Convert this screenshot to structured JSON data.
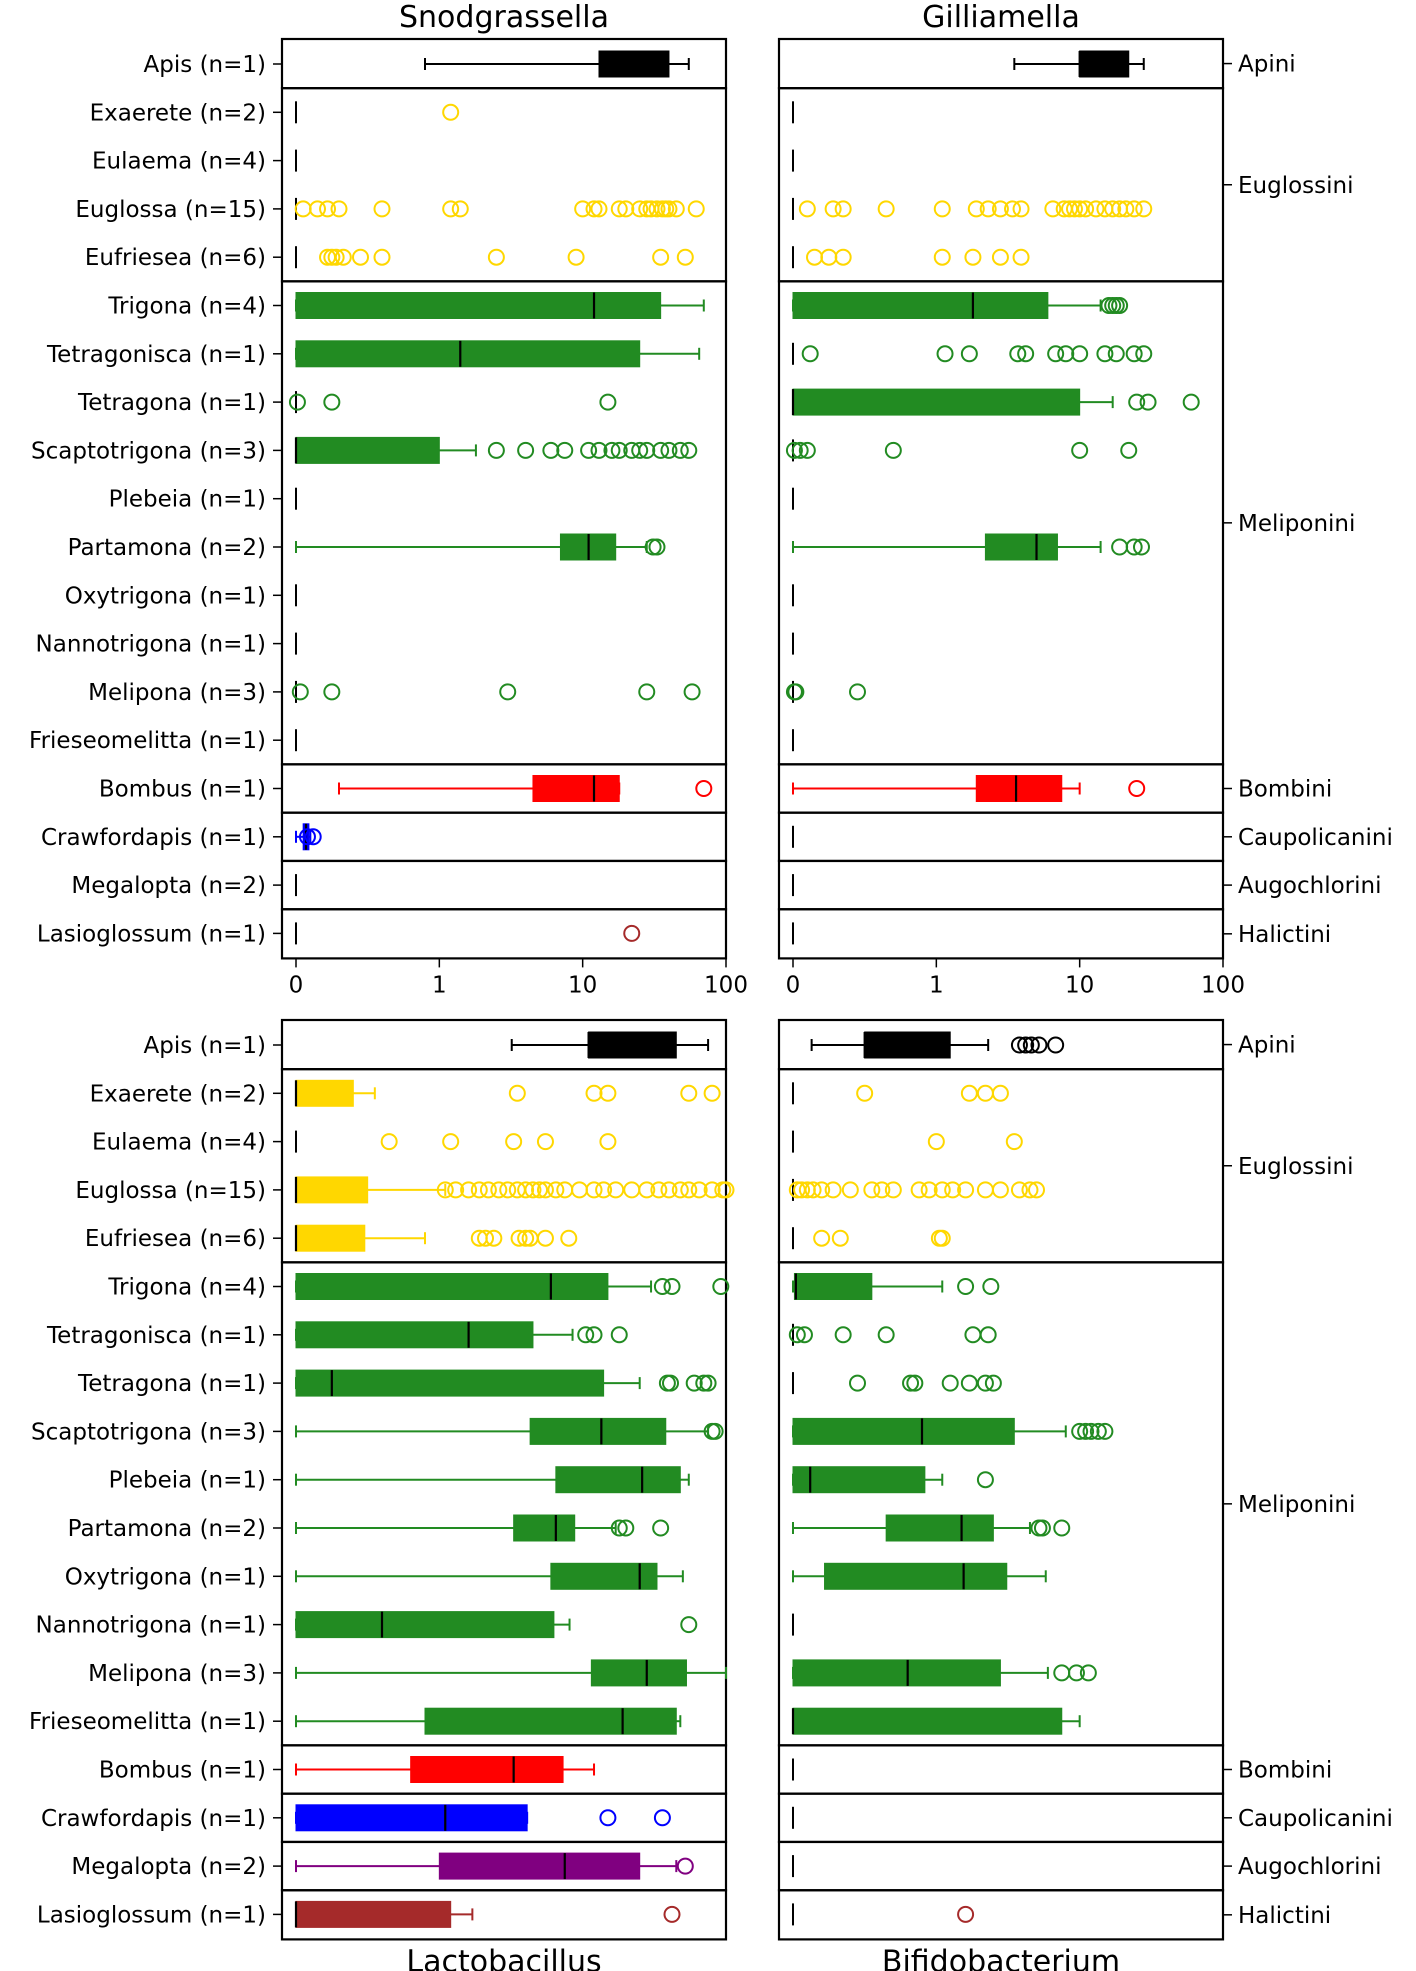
{
  "chart_data": {
    "type": "box",
    "xscale": "symlog",
    "xlim": [
      0,
      100
    ],
    "xticks": [
      "0",
      "1",
      "10",
      "100"
    ],
    "ylabels": [
      "Apis (n=1)",
      "Exaerete (n=2)",
      "Eulaema (n=4)",
      "Euglossa (n=15)",
      "Eufriesea (n=6)",
      "Trigona (n=4)",
      "Tetragonisca (n=1)",
      "Tetragona (n=1)",
      "Scaptotrigona (n=3)",
      "Plebeia (n=1)",
      "Partamona (n=2)",
      "Oxytrigona (n=1)",
      "Nannotrigona (n=1)",
      "Melipona (n=3)",
      "Frieseomelitta (n=1)",
      "Bombus (n=1)",
      "Crawfordapis (n=1)",
      "Megalopta (n=2)",
      "Lasioglossum (n=1)"
    ],
    "tribes": [
      {
        "name": "Apini",
        "rows": [
          0,
          0
        ]
      },
      {
        "name": "Euglossini",
        "rows": [
          1,
          4
        ]
      },
      {
        "name": "Meliponini",
        "rows": [
          5,
          14
        ]
      },
      {
        "name": "Bombini",
        "rows": [
          15,
          15
        ]
      },
      {
        "name": "Caupolicanini",
        "rows": [
          16,
          16
        ]
      },
      {
        "name": "Augochlorini",
        "rows": [
          17,
          17
        ]
      },
      {
        "name": "Halictini",
        "rows": [
          18,
          18
        ]
      }
    ],
    "colors": [
      "#000000",
      "#ffd700",
      "#ffd700",
      "#ffd700",
      "#ffd700",
      "#228b22",
      "#228b22",
      "#228b22",
      "#228b22",
      "#228b22",
      "#228b22",
      "#228b22",
      "#228b22",
      "#228b22",
      "#228b22",
      "#ff0000",
      "#0000ff",
      "#800080",
      "#a52a2a"
    ],
    "panels": [
      {
        "title": "Snodgrassella",
        "title_position": "top",
        "boxes": [
          {
            "wl": 0.9,
            "q1": 13,
            "med": 30,
            "q3": 40,
            "wh": 55,
            "fl": []
          },
          {
            "wl": 0,
            "q1": 0,
            "med": 0,
            "q3": 0,
            "wh": 0,
            "fl": [
              1.2
            ]
          },
          {
            "wl": 0,
            "q1": 0,
            "med": 0,
            "q3": 0,
            "wh": 0,
            "fl": []
          },
          {
            "wl": 0,
            "q1": 0,
            "med": 0,
            "q3": 0,
            "wh": 0,
            "fl": [
              0.05,
              0.15,
              0.22,
              0.3,
              0.6,
              1.2,
              1.4,
              10,
              12,
              13,
              18,
              20,
              25,
              28,
              30,
              33,
              36,
              38,
              40,
              45,
              62
            ]
          },
          {
            "wl": 0,
            "q1": 0,
            "med": 0,
            "q3": 0,
            "wh": 0,
            "fl": [
              0.22,
              0.25,
              0.28,
              0.33,
              0.45,
              0.6,
              2.5,
              9,
              35,
              52
            ]
          },
          {
            "wl": 0,
            "q1": 0,
            "med": 12,
            "q3": 35,
            "wh": 70,
            "fl": []
          },
          {
            "wl": 0,
            "q1": 0,
            "med": 1.4,
            "q3": 25,
            "wh": 65,
            "fl": []
          },
          {
            "wl": 0,
            "q1": 0,
            "med": 0,
            "q3": 0,
            "wh": 0,
            "fl": [
              0.01,
              0.25,
              15
            ]
          },
          {
            "wl": 0,
            "q1": 0,
            "med": 0,
            "q3": 1,
            "wh": 1.8,
            "fl": [
              2.5,
              4,
              6,
              7.5,
              11,
              13,
              16,
              18,
              22,
              25,
              28,
              35,
              40,
              48,
              55
            ]
          },
          {
            "wl": 0,
            "q1": 0,
            "med": 0,
            "q3": 0,
            "wh": 0,
            "fl": []
          },
          {
            "wl": 0,
            "q1": 7,
            "med": 11,
            "q3": 17,
            "wh": 28,
            "fl": [
              31,
              33
            ]
          },
          {
            "wl": 0,
            "q1": 0,
            "med": 0,
            "q3": 0,
            "wh": 0,
            "fl": []
          },
          {
            "wl": 0,
            "q1": 0,
            "med": 0,
            "q3": 0,
            "wh": 0,
            "fl": []
          },
          {
            "wl": 0,
            "q1": 0,
            "med": 0,
            "q3": 0,
            "wh": 0,
            "fl": [
              0.03,
              0.25,
              3,
              28,
              58
            ]
          },
          {
            "wl": 0,
            "q1": 0,
            "med": 0,
            "q3": 0,
            "wh": 0,
            "fl": []
          },
          {
            "wl": 0.3,
            "q1": 4.5,
            "med": 12,
            "q3": 18,
            "wh": 18,
            "fl": [
              70
            ]
          },
          {
            "wl": 0,
            "q1": 0.05,
            "med": 0.07,
            "q3": 0.09,
            "wh": 0.1,
            "fl": [
              0.08,
              0.12
            ]
          },
          {
            "wl": 0,
            "q1": 0,
            "med": 0,
            "q3": 0,
            "wh": 0,
            "fl": []
          },
          {
            "wl": 0,
            "q1": 0,
            "med": 0,
            "q3": 0,
            "wh": 0,
            "fl": [
              22
            ]
          }
        ]
      },
      {
        "title": "Gilliamella",
        "title_position": "top",
        "boxes": [
          {
            "wl": 3.5,
            "q1": 10,
            "med": 10,
            "q3": 22,
            "wh": 28,
            "fl": []
          },
          {
            "wl": 0,
            "q1": 0,
            "med": 0,
            "q3": 0,
            "wh": 0,
            "fl": []
          },
          {
            "wl": 0,
            "q1": 0,
            "med": 0,
            "q3": 0,
            "wh": 0,
            "fl": []
          },
          {
            "wl": 0,
            "q1": 0,
            "med": 0,
            "q3": 0,
            "wh": 0,
            "fl": [
              0.1,
              0.28,
              0.35,
              0.65,
              1.1,
              1.9,
              2.3,
              2.8,
              3.4,
              3.9,
              6.5,
              7.8,
              8.5,
              9.2,
              10,
              11,
              13,
              15,
              17,
              19,
              21,
              24,
              28
            ]
          },
          {
            "wl": 0,
            "q1": 0,
            "med": 0,
            "q3": 0,
            "wh": 0,
            "fl": [
              0.15,
              0.25,
              0.35,
              1.1,
              1.8,
              2.8,
              3.9
            ]
          },
          {
            "wl": 0,
            "q1": 0,
            "med": 1.8,
            "q3": 6,
            "wh": 14,
            "fl": [
              16,
              17,
              18,
              19
            ]
          },
          {
            "wl": 0,
            "q1": 0,
            "med": 0,
            "q3": 0,
            "wh": 0,
            "fl": [
              0.12,
              1.15,
              1.7,
              3.7,
              4.2,
              6.8,
              8,
              10,
              15,
              18,
              24,
              28
            ]
          },
          {
            "wl": 0,
            "q1": 0,
            "med": 0,
            "q3": 10,
            "wh": 17,
            "fl": [
              25,
              30,
              60
            ]
          },
          {
            "wl": 0,
            "q1": 0,
            "med": 0,
            "q3": 0,
            "wh": 0,
            "fl": [
              0.01,
              0.05,
              0.1,
              0.7,
              10,
              22
            ]
          },
          {
            "wl": 0,
            "q1": 0,
            "med": 0,
            "q3": 0,
            "wh": 0,
            "fl": []
          },
          {
            "wl": 0,
            "q1": 2.2,
            "med": 5,
            "q3": 7,
            "wh": 14,
            "fl": [
              19,
              24,
              27
            ]
          },
          {
            "wl": 0,
            "q1": 0,
            "med": 0,
            "q3": 0,
            "wh": 0,
            "fl": []
          },
          {
            "wl": 0,
            "q1": 0,
            "med": 0,
            "q3": 0,
            "wh": 0,
            "fl": []
          },
          {
            "wl": 0,
            "q1": 0,
            "med": 0,
            "q3": 0,
            "wh": 0,
            "fl": [
              0.01,
              0.02,
              0.45
            ]
          },
          {
            "wl": 0,
            "q1": 0,
            "med": 0,
            "q3": 0,
            "wh": 0,
            "fl": []
          },
          {
            "wl": 0,
            "q1": 1.9,
            "med": 3.6,
            "q3": 7.5,
            "wh": 10,
            "fl": [
              25
            ]
          },
          {
            "wl": 0,
            "q1": 0,
            "med": 0,
            "q3": 0,
            "wh": 0,
            "fl": []
          },
          {
            "wl": 0,
            "q1": 0,
            "med": 0,
            "q3": 0,
            "wh": 0,
            "fl": []
          },
          {
            "wl": 0,
            "q1": 0,
            "med": 0,
            "q3": 0,
            "wh": 0,
            "fl": []
          }
        ]
      },
      {
        "title": "Lactobacillus",
        "title_position": "bottom",
        "boxes": [
          {
            "wl": 3.2,
            "q1": 11,
            "med": 11,
            "q3": 45,
            "wh": 75,
            "fl": []
          },
          {
            "wl": 0,
            "q1": 0,
            "med": 0,
            "q3": 0.4,
            "wh": 0.55,
            "fl": [
              3.5,
              12,
              15,
              55,
              80
            ]
          },
          {
            "wl": 0,
            "q1": 0,
            "med": 0,
            "q3": 0,
            "wh": 0,
            "fl": [
              0.65,
              1.2,
              3.3,
              5.5,
              15
            ]
          },
          {
            "wl": 0,
            "q1": 0,
            "med": 0,
            "q3": 0.5,
            "wh": 1.1,
            "fl": [
              1.1,
              1.3,
              1.6,
              1.9,
              2.2,
              2.6,
              3,
              3.5,
              4,
              4.5,
              5,
              5.5,
              6.5,
              7.5,
              9.5,
              12,
              14,
              17,
              22,
              28,
              34,
              40,
              48,
              55,
              65,
              80,
              95,
              100
            ]
          },
          {
            "wl": 0,
            "q1": 0,
            "med": 0,
            "q3": 0.48,
            "wh": 0.9,
            "fl": [
              1.9,
              2.1,
              2.4,
              3.6,
              4,
              4.3,
              5.5,
              8
            ]
          },
          {
            "wl": 0,
            "q1": 0,
            "med": 6,
            "q3": 15,
            "wh": 30,
            "fl": [
              36,
              42,
              92
            ]
          },
          {
            "wl": 0,
            "q1": 0,
            "med": 1.6,
            "q3": 4.5,
            "wh": 8.5,
            "fl": [
              10.5,
              12,
              18
            ]
          },
          {
            "wl": 0,
            "q1": 0,
            "med": 0.25,
            "q3": 14,
            "wh": 25,
            "fl": [
              39,
              41,
              60,
              70,
              75
            ]
          },
          {
            "wl": 0,
            "q1": 4.3,
            "med": 13.5,
            "q3": 38,
            "wh": 75,
            "fl": [
              80,
              84
            ]
          },
          {
            "wl": 0,
            "q1": 6.5,
            "med": 26,
            "q3": 48,
            "wh": 55,
            "fl": []
          },
          {
            "wl": 0,
            "q1": 3.3,
            "med": 6.5,
            "q3": 8.8,
            "wh": 17,
            "fl": [
              18,
              20,
              35
            ]
          },
          {
            "wl": 0,
            "q1": 6,
            "med": 25,
            "q3": 33,
            "wh": 50,
            "fl": []
          },
          {
            "wl": 0,
            "q1": 0,
            "med": 0.6,
            "q3": 6.3,
            "wh": 8.1,
            "fl": [
              55
            ]
          },
          {
            "wl": 0,
            "q1": 11.5,
            "med": 28,
            "q3": 53,
            "wh": 100,
            "fl": []
          },
          {
            "wl": 0,
            "q1": 0.9,
            "med": 19,
            "q3": 45,
            "wh": 48,
            "fl": []
          },
          {
            "wl": 0,
            "q1": 0.8,
            "med": 3.3,
            "q3": 7.3,
            "wh": 12,
            "fl": []
          },
          {
            "wl": 0,
            "q1": 0,
            "med": 1.1,
            "q3": 4.1,
            "wh": 4.1,
            "fl": [
              15,
              36
            ]
          },
          {
            "wl": 0,
            "q1": 1,
            "med": 7.5,
            "q3": 25,
            "wh": 45,
            "fl": [
              52
            ]
          },
          {
            "wl": 0,
            "q1": 0,
            "med": 0,
            "q3": 1.2,
            "wh": 1.7,
            "fl": [
              42
            ]
          }
        ]
      },
      {
        "title": "Bifidobacterium",
        "title_position": "bottom",
        "boxes": [
          {
            "wl": 0.13,
            "q1": 0.5,
            "med": 0.5,
            "q3": 1.25,
            "wh": 2.3,
            "fl": [
              3.8,
              4.2,
              4.6,
              5.2,
              6.8
            ]
          },
          {
            "wl": 0,
            "q1": 0,
            "med": 0,
            "q3": 0,
            "wh": 0,
            "fl": [
              0.5,
              1.7,
              2.2,
              2.8
            ]
          },
          {
            "wl": 0,
            "q1": 0,
            "med": 0,
            "q3": 0,
            "wh": 0,
            "fl": [
              1,
              3.5
            ]
          },
          {
            "wl": 0,
            "q1": 0,
            "med": 0,
            "q3": 0,
            "wh": 0,
            "fl": [
              0.03,
              0.06,
              0.1,
              0.14,
              0.2,
              0.28,
              0.4,
              0.55,
              0.62,
              0.7,
              0.88,
              0.95,
              1.1,
              1.3,
              1.6,
              2.2,
              2.8,
              3.8,
              4.5,
              5
            ]
          },
          {
            "wl": 0,
            "q1": 0,
            "med": 0,
            "q3": 0,
            "wh": 0,
            "fl": [
              0.2,
              0.33,
              1.05,
              1.1
            ]
          },
          {
            "wl": 0,
            "q1": 0.01,
            "med": 0.02,
            "q3": 0.55,
            "wh": 1.1,
            "fl": [
              1.6,
              2.4
            ]
          },
          {
            "wl": 0,
            "q1": 0,
            "med": 0,
            "q3": 0,
            "wh": 0,
            "fl": [
              0.03,
              0.08,
              0.35,
              0.65,
              1.8,
              2.3
            ]
          },
          {
            "wl": 0,
            "q1": 0,
            "med": 0,
            "q3": 0,
            "wh": 0,
            "fl": [
              0.45,
              0.82,
              0.85,
              1.25,
              1.7,
              2.2,
              2.5
            ]
          },
          {
            "wl": 0,
            "q1": 0,
            "med": 0.9,
            "q3": 3.5,
            "wh": 8,
            "fl": [
              10,
              11,
              12,
              13.5,
              15
            ]
          },
          {
            "wl": 0,
            "q1": 0,
            "med": 0.12,
            "q3": 0.92,
            "wh": 1.1,
            "fl": [
              2.2
            ]
          },
          {
            "wl": 0,
            "q1": 0.65,
            "med": 1.5,
            "q3": 2.5,
            "wh": 4.5,
            "fl": [
              5.2,
              5.5,
              7.5
            ]
          },
          {
            "wl": 0,
            "q1": 0.22,
            "med": 1.55,
            "q3": 3.1,
            "wh": 5.8,
            "fl": []
          },
          {
            "wl": 0,
            "q1": 0,
            "med": 0,
            "q3": 0,
            "wh": 0,
            "fl": []
          },
          {
            "wl": 0,
            "q1": 0,
            "med": 0.8,
            "q3": 2.8,
            "wh": 6,
            "fl": [
              7.5,
              9.5,
              11.5
            ]
          },
          {
            "wl": 0,
            "q1": 0,
            "med": 0,
            "q3": 7.5,
            "wh": 10,
            "fl": []
          },
          {
            "wl": 0,
            "q1": 0,
            "med": 0,
            "q3": 0,
            "wh": 0,
            "fl": []
          },
          {
            "wl": 0,
            "q1": 0,
            "med": 0,
            "q3": 0,
            "wh": 0,
            "fl": []
          },
          {
            "wl": 0,
            "q1": 0,
            "med": 0,
            "q3": 0,
            "wh": 0,
            "fl": []
          },
          {
            "wl": 0,
            "q1": 0,
            "med": 0,
            "q3": 0,
            "wh": 0,
            "fl": [
              1.6
            ]
          }
        ]
      }
    ]
  }
}
